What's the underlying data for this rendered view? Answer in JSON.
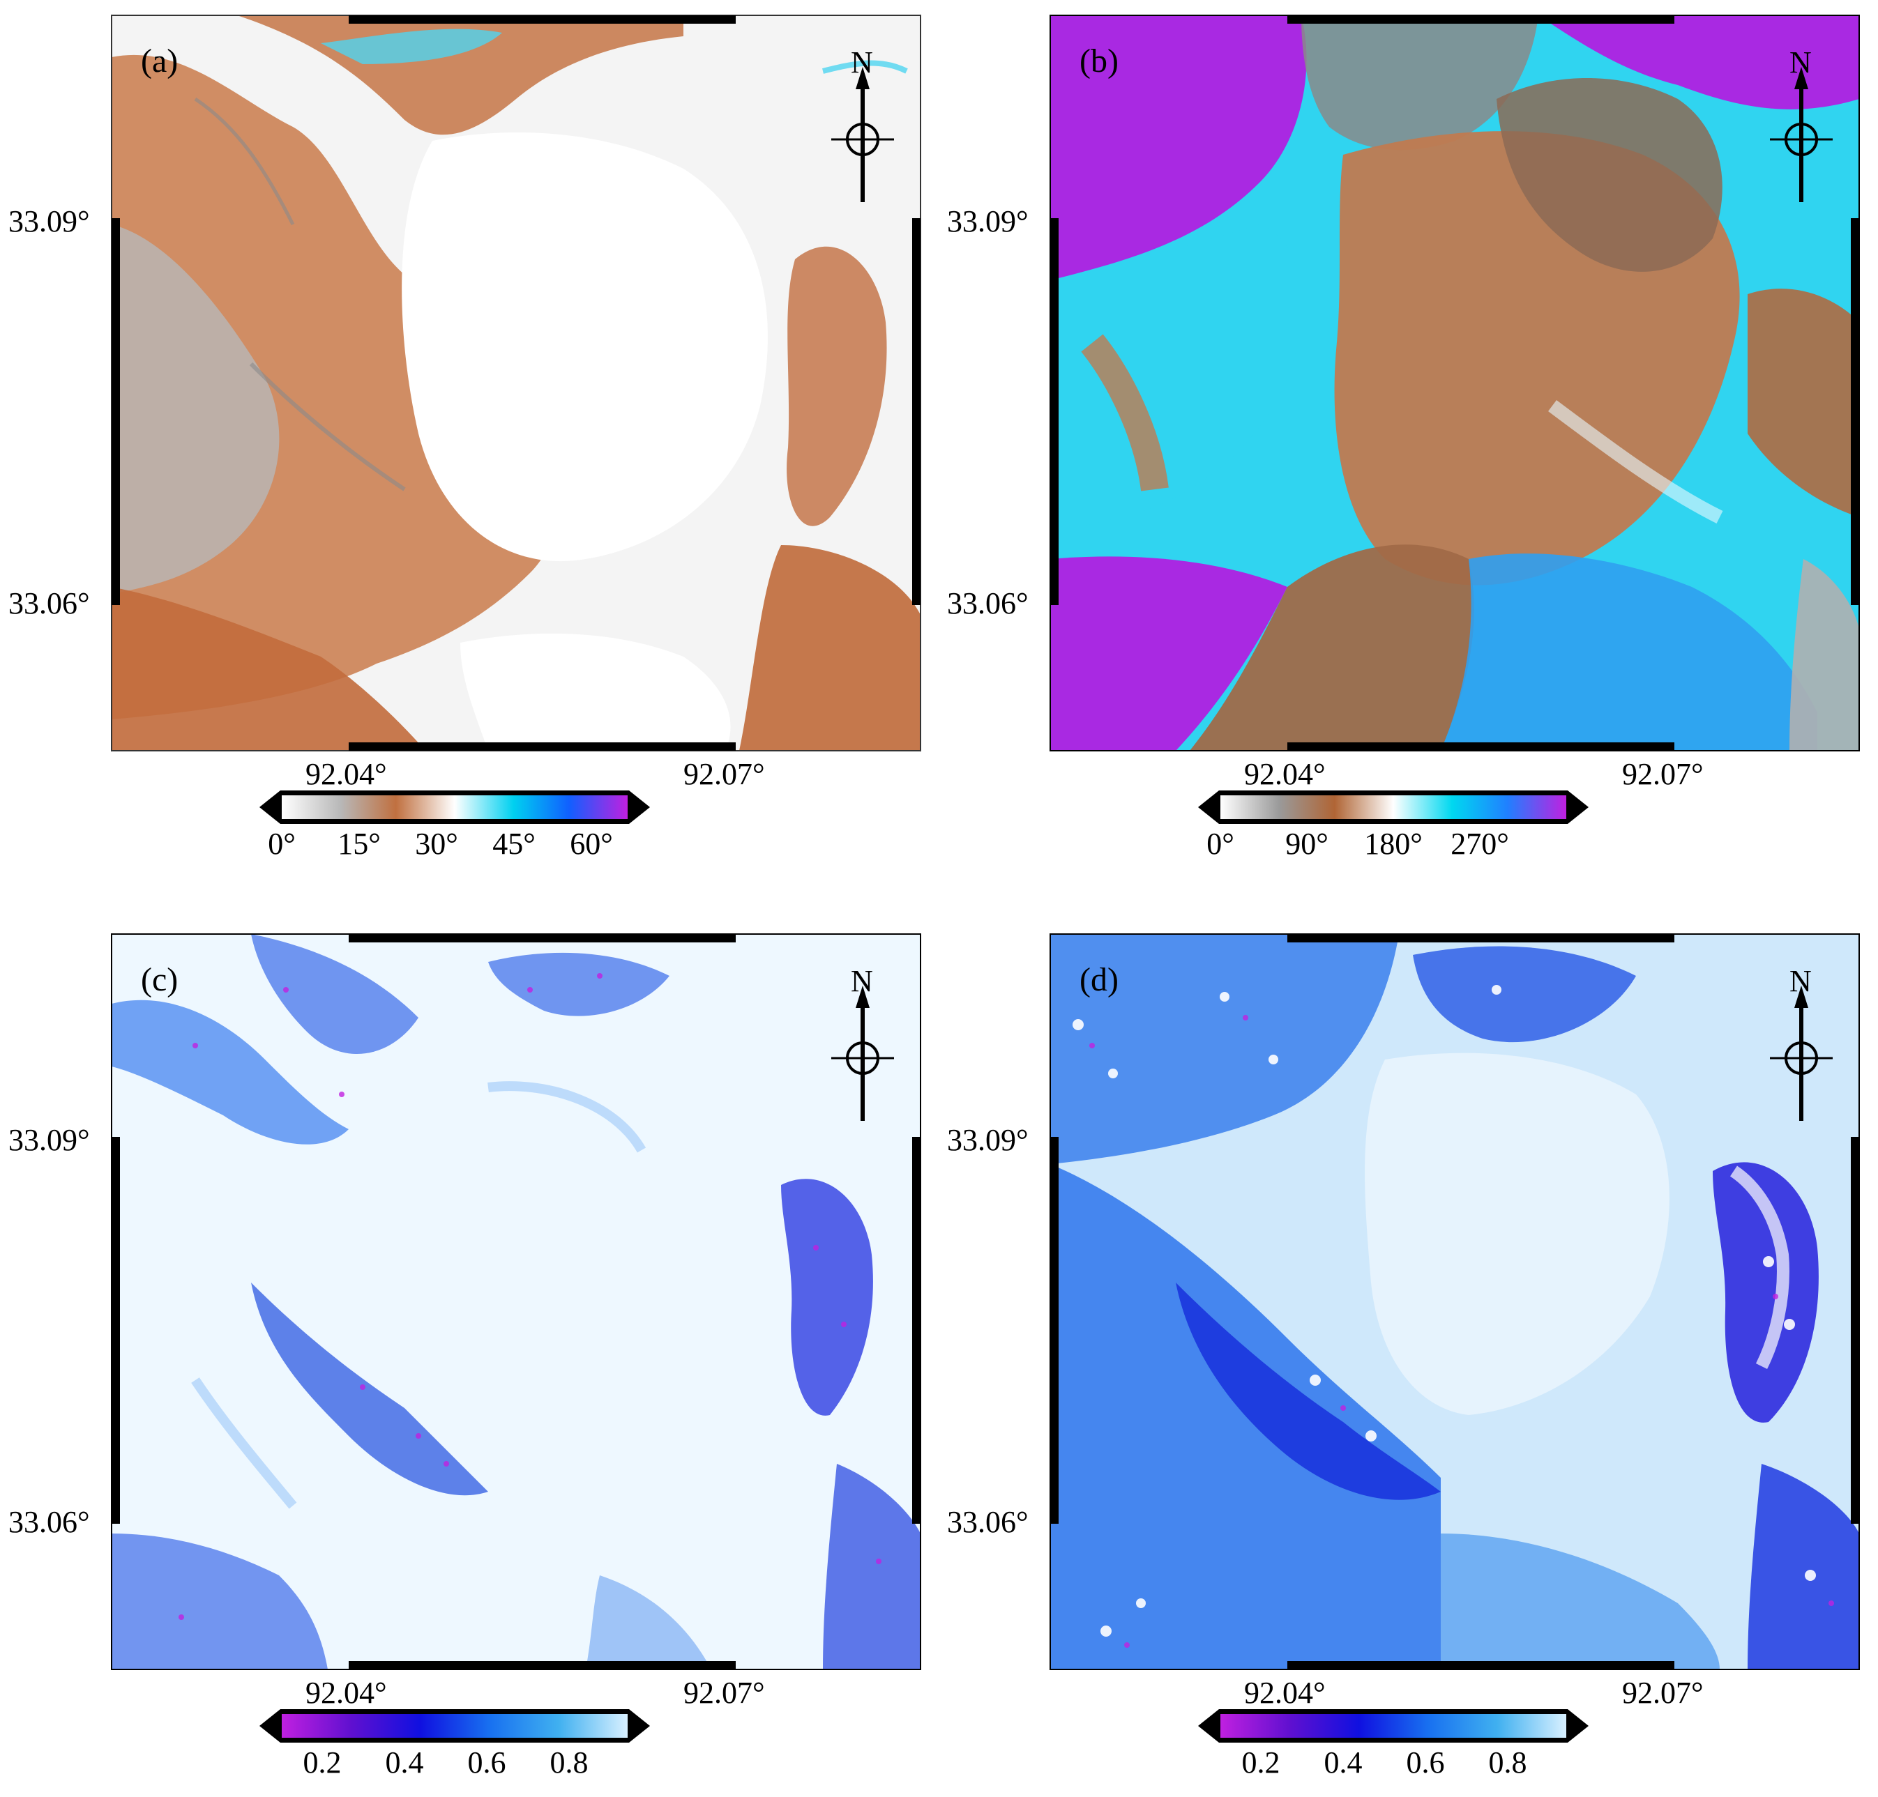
{
  "panels": [
    {
      "label": "(a)",
      "north": "N",
      "y_ticks": [
        "33.09°",
        "33.06°"
      ],
      "x_ticks": [
        "92.04°",
        "92.07°"
      ],
      "colorbar": {
        "stops": [
          "#ffffff",
          "#b8b8b8",
          "#c07040",
          "#ffffff",
          "#00d0f0",
          "#1060ff",
          "#c020e0"
        ],
        "labels": [
          "0°",
          "15°",
          "30°",
          "45°",
          "60°"
        ]
      }
    },
    {
      "label": "(b)",
      "north": "N",
      "y_ticks": [
        "33.09°",
        "33.06°"
      ],
      "x_ticks": [
        "92.04°",
        "92.07°"
      ],
      "colorbar": {
        "stops": [
          "#ffffff",
          "#9a9a9a",
          "#b06535",
          "#ffffff",
          "#00d8f0",
          "#2080ff",
          "#c020e0"
        ],
        "labels": [
          "0°",
          "90°",
          "180°",
          "270°"
        ]
      }
    },
    {
      "label": "(c)",
      "north": "N",
      "y_ticks": [
        "33.09°",
        "33.06°"
      ],
      "x_ticks": [
        "92.04°",
        "92.07°"
      ],
      "colorbar": {
        "stops": [
          "#c020e0",
          "#6010d0",
          "#1010e0",
          "#1870f0",
          "#40b0f0",
          "#d8f0ff"
        ],
        "labels": [
          "0.2",
          "0.4",
          "0.6",
          "0.8"
        ]
      }
    },
    {
      "label": "(d)",
      "north": "N",
      "y_ticks": [
        "33.09°",
        "33.06°"
      ],
      "x_ticks": [
        "92.04°",
        "92.07°"
      ],
      "colorbar": {
        "stops": [
          "#c020e0",
          "#6010d0",
          "#1010e0",
          "#1870f0",
          "#40b0f0",
          "#d8f0ff"
        ],
        "labels": [
          "0.2",
          "0.4",
          "0.6",
          "0.8"
        ]
      }
    }
  ]
}
